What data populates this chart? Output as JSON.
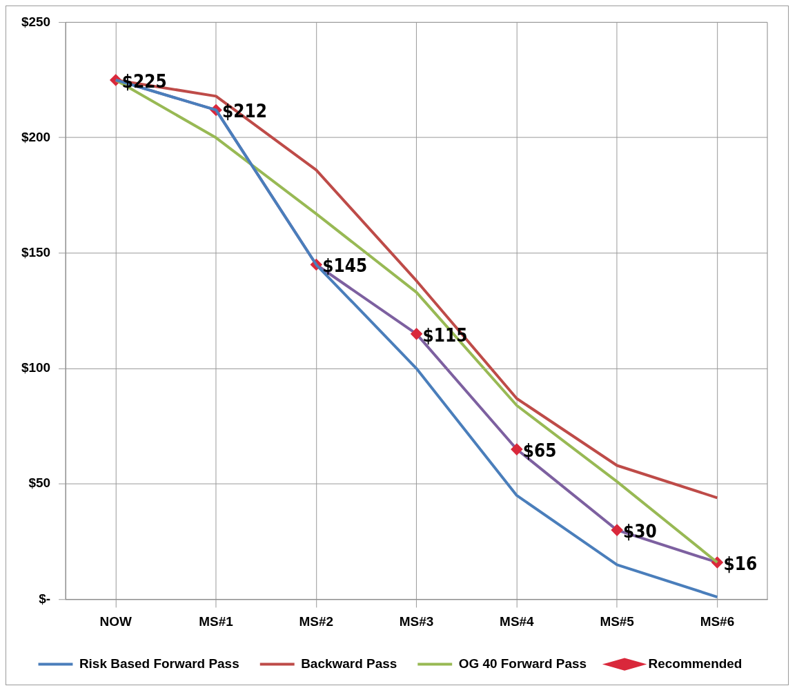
{
  "chart_data": {
    "type": "line",
    "categories": [
      "NOW",
      "MS#1",
      "MS#2",
      "MS#3",
      "MS#4",
      "MS#5",
      "MS#6"
    ],
    "series": [
      {
        "name": "Risk Based Forward Pass",
        "color": "#4a7ebb",
        "marker": "none",
        "values": [
          225,
          212,
          145,
          100,
          45,
          15,
          1
        ]
      },
      {
        "name": "Backward Pass",
        "color": "#be4b48",
        "marker": "none",
        "values": [
          225,
          218,
          186,
          138,
          87,
          58,
          44
        ]
      },
      {
        "name": "OG 40 Forward Pass",
        "color": "#98b954",
        "marker": "none",
        "values": [
          225,
          200,
          167,
          133,
          84,
          51,
          16
        ]
      },
      {
        "name": "Recommended",
        "color": "#7d60a0",
        "marker": "diamond",
        "colors": [
          "#d9283b",
          "#d9283b",
          "#d9283b",
          "#d9283b",
          "#d9283b",
          "#d9283b",
          "#d9283b"
        ],
        "values": [
          225,
          212,
          145,
          115,
          65,
          30,
          16
        ],
        "value_labels": [
          "$225",
          "$212",
          "$145",
          "$115",
          "$65",
          "$30",
          "$16"
        ]
      }
    ],
    "ylim": [
      0,
      250
    ],
    "yticks": [
      {
        "value": 0,
        "label": "$-"
      },
      {
        "value": 50,
        "label": "$50"
      },
      {
        "value": 100,
        "label": "$100"
      },
      {
        "value": 150,
        "label": "$150"
      },
      {
        "value": 200,
        "label": "$200"
      },
      {
        "value": 250,
        "label": "$250"
      }
    ],
    "grid": true,
    "legend": "bottom",
    "line_style": "solid"
  }
}
